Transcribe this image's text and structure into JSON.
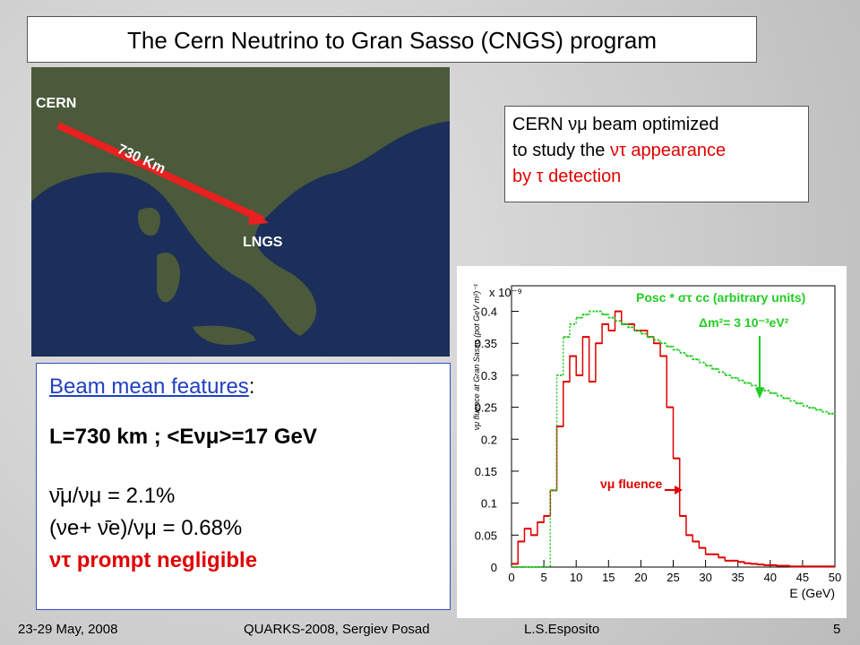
{
  "header": {
    "title": "The Cern Neutrino to Gran Sasso (CNGS) program"
  },
  "map": {
    "labels": [
      "CERN",
      "730 Km",
      "LNGS"
    ]
  },
  "info_box": {
    "lines": [
      [
        "CERN νμ beam optimized"
      ],
      [
        "to study the ",
        "ντ appearance"
      ],
      [
        "by τ detection"
      ]
    ]
  },
  "features": {
    "heading": "Beam mean features",
    "colon": ":",
    "lines": [
      "L=730 km ; <Eνμ>=17 GeV",
      "ν̄μ/νμ  = 2.1%",
      "(νe+ ν̄e)/νμ  = 0.68%",
      "ντ prompt negligible"
    ]
  },
  "chart_data": {
    "type": "histogram",
    "y_title": "νμ fluence at Gran Sasso (pot GeV m²)⁻¹",
    "x_title": "E (GeV)",
    "y_scale_label": "x 10⁻⁹",
    "annotations": [
      "Posc * στ cc (arbitrary units)",
      "Δm²= 3 10⁻³eV²",
      "νμ fluence"
    ],
    "bins": [
      0,
      1,
      2,
      3,
      4,
      5,
      6,
      7,
      8,
      9,
      10,
      11,
      12,
      13,
      14,
      15,
      16,
      17,
      18,
      19,
      20,
      21,
      22,
      23,
      24,
      25,
      26,
      27,
      28,
      29,
      30,
      31,
      32,
      33,
      34,
      35,
      36,
      37,
      38,
      39,
      40,
      41,
      42,
      43,
      44,
      45,
      46,
      47,
      48,
      49,
      50
    ],
    "series": [
      {
        "name": "νμ fluence",
        "color": "#e00000",
        "style": "solid",
        "values": [
          0.005,
          0.04,
          0.06,
          0.05,
          0.07,
          0.08,
          0.12,
          0.22,
          0.29,
          0.33,
          0.3,
          0.36,
          0.29,
          0.35,
          0.38,
          0.37,
          0.4,
          0.38,
          0.38,
          0.37,
          0.37,
          0.36,
          0.35,
          0.33,
          0.25,
          0.17,
          0.08,
          0.05,
          0.04,
          0.03,
          0.02,
          0.02,
          0.015,
          0.01,
          0.01,
          0.008,
          0.006,
          0.005,
          0.004,
          0.003,
          0.003,
          0.002,
          0.002,
          0.001,
          0.001,
          0.001,
          0.001,
          0.001,
          0.001,
          0.001
        ]
      },
      {
        "name": "Posc * στ cc",
        "color": "#22cc22",
        "style": "dotted",
        "values": [
          0,
          0,
          0,
          0,
          0,
          0,
          0.12,
          0.3,
          0.36,
          0.38,
          0.39,
          0.395,
          0.4,
          0.4,
          0.395,
          0.39,
          0.385,
          0.38,
          0.375,
          0.37,
          0.365,
          0.36,
          0.355,
          0.35,
          0.345,
          0.34,
          0.335,
          0.33,
          0.325,
          0.32,
          0.315,
          0.31,
          0.305,
          0.3,
          0.296,
          0.292,
          0.288,
          0.284,
          0.28,
          0.276,
          0.272,
          0.268,
          0.264,
          0.26,
          0.256,
          0.252,
          0.249,
          0.246,
          0.243,
          0.24
        ]
      }
    ],
    "xlim": [
      0,
      50
    ],
    "xticks": [
      0,
      5,
      10,
      15,
      20,
      25,
      30,
      35,
      40,
      45,
      50
    ],
    "ylim": [
      0,
      0.44
    ],
    "yticks": [
      0,
      0.05,
      0.1,
      0.15,
      0.2,
      0.25,
      0.3,
      0.35,
      0.4
    ]
  },
  "footer": {
    "date": "23-29 May, 2008",
    "conference": "QUARKS-2008, Sergiev Posad",
    "author": "L.S.Esposito",
    "page": "5"
  }
}
